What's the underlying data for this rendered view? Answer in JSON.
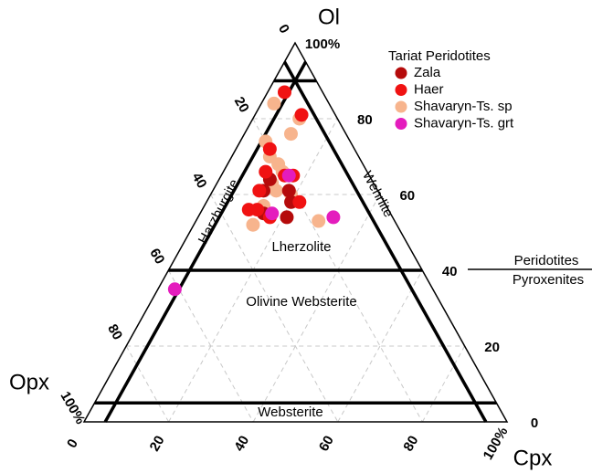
{
  "chart_data": {
    "type": "ternary",
    "apex_labels": {
      "top": "Ol",
      "left": "Opx",
      "right": "Cpx"
    },
    "ol_ticks": [
      0,
      20,
      40,
      60,
      80,
      {
        "value": 100,
        "label": "100%"
      }
    ],
    "opx_ticks": [
      0,
      20,
      40,
      60,
      80,
      {
        "value": 100,
        "label": "100%"
      }
    ],
    "cpx_ticks": [
      0,
      20,
      40,
      60,
      80,
      {
        "value": 100,
        "label": "100%"
      }
    ],
    "grid": true,
    "fields": [
      "Harzburgite",
      "Wehrlite",
      "Lherzolite",
      "Olivine Websterite",
      "Websterite"
    ],
    "divider_labels": [
      "Peridotites",
      "Pyroxenites"
    ],
    "legend_title": "Tariat Peridotites",
    "legend_position": "top-right",
    "series": [
      {
        "name": "Zala",
        "color": "#b50b0b",
        "ol": [
          61,
          58,
          54,
          64,
          61,
          55
        ],
        "cpx": [
          12,
          20,
          21,
          12,
          18,
          15
        ],
        "opx": [
          27,
          22,
          25,
          24,
          21,
          30
        ]
      },
      {
        "name": "Haer",
        "color": "#f01212",
        "ol": [
          87,
          81,
          72,
          66,
          65,
          65,
          56,
          56,
          61,
          58,
          54
        ],
        "cpx": [
          4,
          11,
          8,
          10,
          15,
          17,
          13,
          11,
          11,
          22,
          17
        ],
        "opx": [
          9,
          8,
          20,
          24,
          20,
          18,
          31,
          33,
          28,
          20,
          29
        ]
      },
      {
        "name": "Shavaryn-Ts. sp",
        "color": "#f7b48d",
        "ol": [
          84,
          80,
          76,
          74,
          70,
          68,
          66,
          63,
          61,
          60,
          57,
          55,
          52,
          53
        ],
        "cpx": [
          3,
          11,
          11,
          6,
          9,
          12,
          14,
          13,
          15,
          19,
          14,
          16,
          14,
          29
        ],
        "opx": [
          13,
          9,
          13,
          20,
          21,
          20,
          20,
          24,
          24,
          21,
          29,
          29,
          34,
          18
        ]
      },
      {
        "name": "Shavaryn-Ts. grt",
        "color": "#e41cbd",
        "ol": [
          65,
          55,
          54,
          35
        ],
        "cpx": [
          16,
          17,
          32,
          4
        ],
        "opx": [
          19,
          28,
          14,
          61
        ]
      }
    ]
  }
}
